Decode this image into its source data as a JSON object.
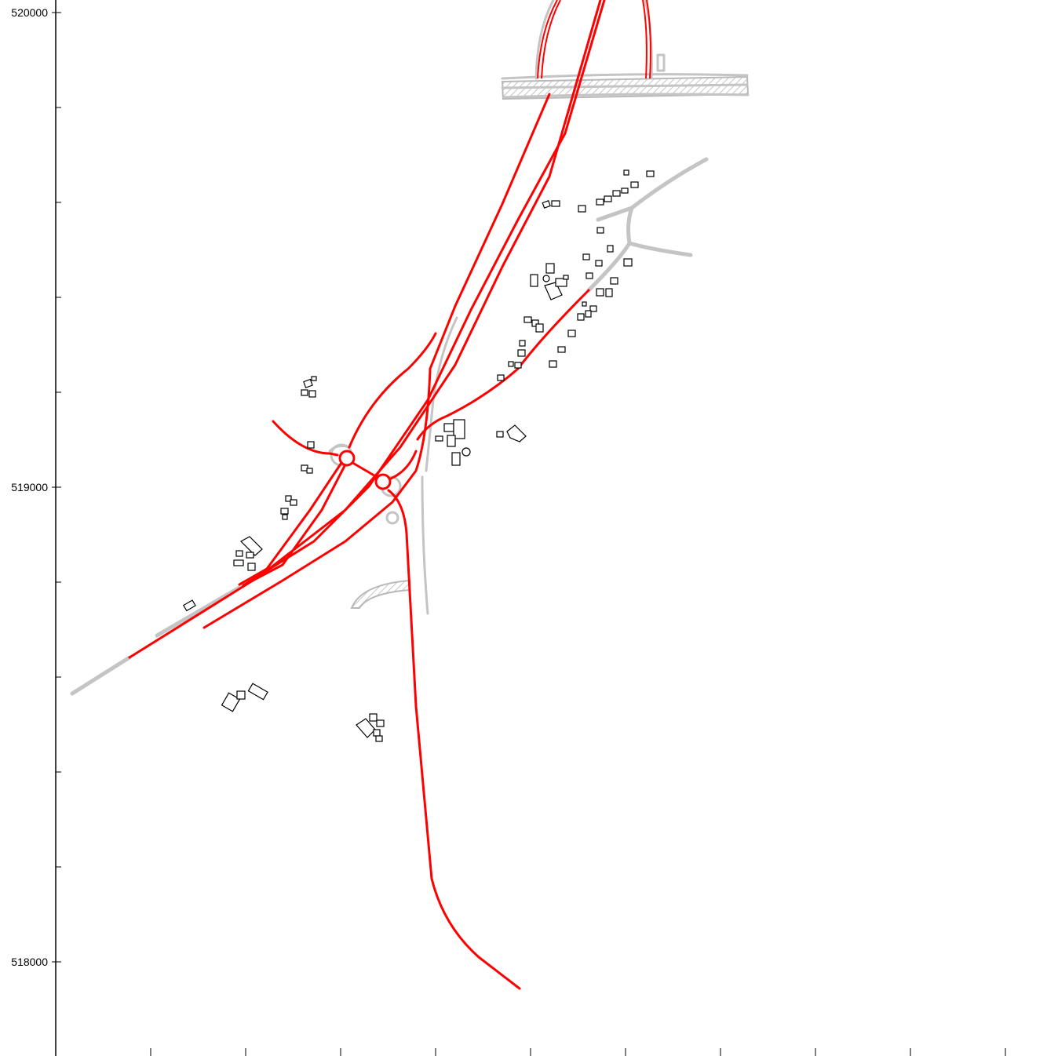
{
  "map": {
    "y_axis": {
      "ticks": [
        {
          "value": 520000,
          "label": "520000"
        },
        {
          "value": 519000,
          "label": "519000"
        },
        {
          "value": 518000,
          "label": "518000"
        }
      ]
    },
    "colors": {
      "scheme_roads": "#ff0000",
      "existing_roads": "#c4c4c4",
      "buildings": "#000000",
      "background": "#ffffff"
    },
    "layers": [
      "existing-roads",
      "scheme-roads",
      "roundabouts",
      "buildings"
    ]
  }
}
